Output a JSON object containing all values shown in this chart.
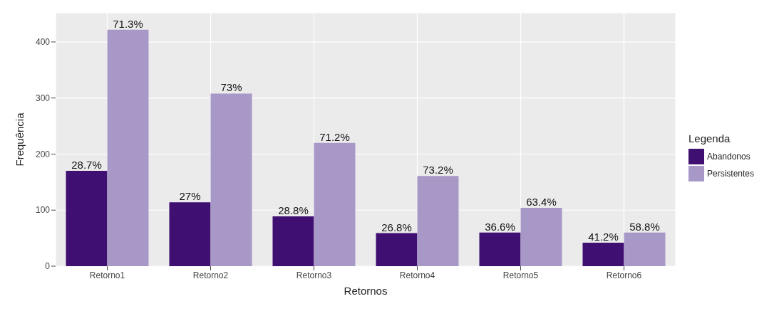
{
  "chart_data": {
    "type": "bar",
    "xlabel": "Retornos",
    "ylabel": "Frequência",
    "legend_title": "Legenda",
    "legend": "right",
    "categories": [
      "Retorno1",
      "Retorno2",
      "Retorno3",
      "Retorno4",
      "Retorno5",
      "Retorno6"
    ],
    "series": [
      {
        "name": "Abandonos",
        "color": "#3f0f72",
        "values": [
          170,
          114,
          89,
          59,
          60,
          42
        ]
      },
      {
        "name": "Persistentes",
        "color": "#a898c8",
        "values": [
          422,
          308,
          220,
          161,
          104,
          60
        ]
      }
    ],
    "annotations": [
      {
        "text": "28.7%",
        "x": "Retorno1",
        "y": 170
      },
      {
        "text": "71.3%",
        "x": "Retorno1",
        "y": 422
      },
      {
        "text": "27%",
        "x": "Retorno2",
        "y": 114
      },
      {
        "text": "73%",
        "x": "Retorno2",
        "y": 308
      },
      {
        "text": "28.8%",
        "x": "Retorno3",
        "y": 89
      },
      {
        "text": "71.2%",
        "x": "Retorno3",
        "y": 220
      },
      {
        "text": "26.8%",
        "x": "Retorno4",
        "y": 59
      },
      {
        "text": "73.2%",
        "x": "Retorno4",
        "y": 161
      },
      {
        "text": "36.6%",
        "x": "Retorno5",
        "y": 60
      },
      {
        "text": "63.4%",
        "x": "Retorno5",
        "y": 104
      },
      {
        "text": "41.2%",
        "x": "Retorno6",
        "y": 42
      },
      {
        "text": "58.8%",
        "x": "Retorno6",
        "y": 60
      }
    ],
    "ylim": [
      0,
      452
    ],
    "yticks": [
      0,
      100,
      200,
      300,
      400
    ],
    "grid": true
  }
}
